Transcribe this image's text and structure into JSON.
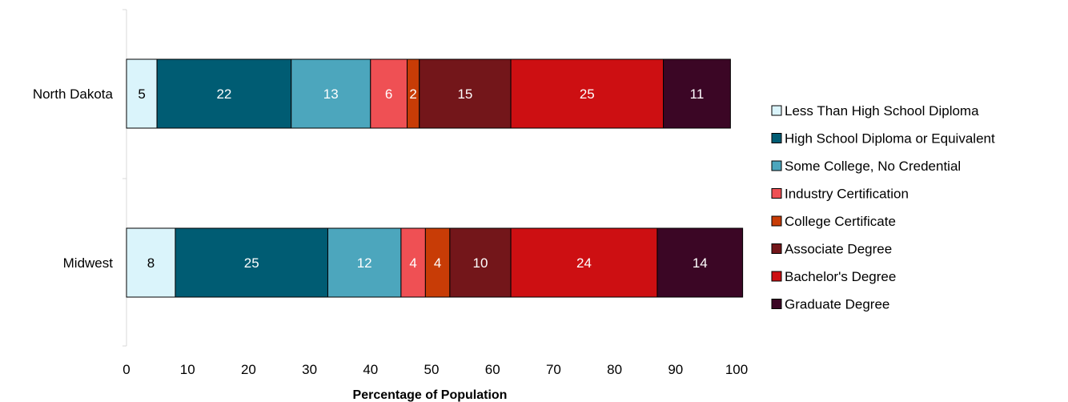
{
  "chart_data": {
    "type": "bar",
    "orientation": "horizontal",
    "stacked": true,
    "categories": [
      "North Dakota",
      "Midwest"
    ],
    "series": [
      {
        "name": "Less Than High School Diploma",
        "values": [
          5,
          8
        ],
        "color": "#daf4fb",
        "label_color": "#000000"
      },
      {
        "name": "High School Diploma or Equivalent",
        "values": [
          22,
          25
        ],
        "color": "#005c73",
        "label_color": "#ffffff"
      },
      {
        "name": "Some College, No Credential",
        "values": [
          13,
          12
        ],
        "color": "#4ca6bd",
        "label_color": "#ffffff"
      },
      {
        "name": "Industry Certification",
        "values": [
          6,
          4
        ],
        "color": "#ef5054",
        "label_color": "#ffffff"
      },
      {
        "name": "College Certificate",
        "values": [
          2,
          4
        ],
        "color": "#c83c06",
        "label_color": "#ffffff"
      },
      {
        "name": "Associate Degree",
        "values": [
          15,
          10
        ],
        "color": "#73161a",
        "label_color": "#ffffff"
      },
      {
        "name": "Bachelor's Degree",
        "values": [
          25,
          24
        ],
        "color": "#cd0f12",
        "label_color": "#ffffff"
      },
      {
        "name": "Graduate Degree",
        "values": [
          11,
          14
        ],
        "color": "#3b0625",
        "label_color": "#ffffff"
      }
    ],
    "xlabel": "Percentage of Population",
    "xlim": [
      0,
      100
    ],
    "xticks": [
      0,
      10,
      20,
      30,
      40,
      50,
      60,
      70,
      80,
      90,
      100
    ],
    "grid": false,
    "legend_position": "right"
  }
}
